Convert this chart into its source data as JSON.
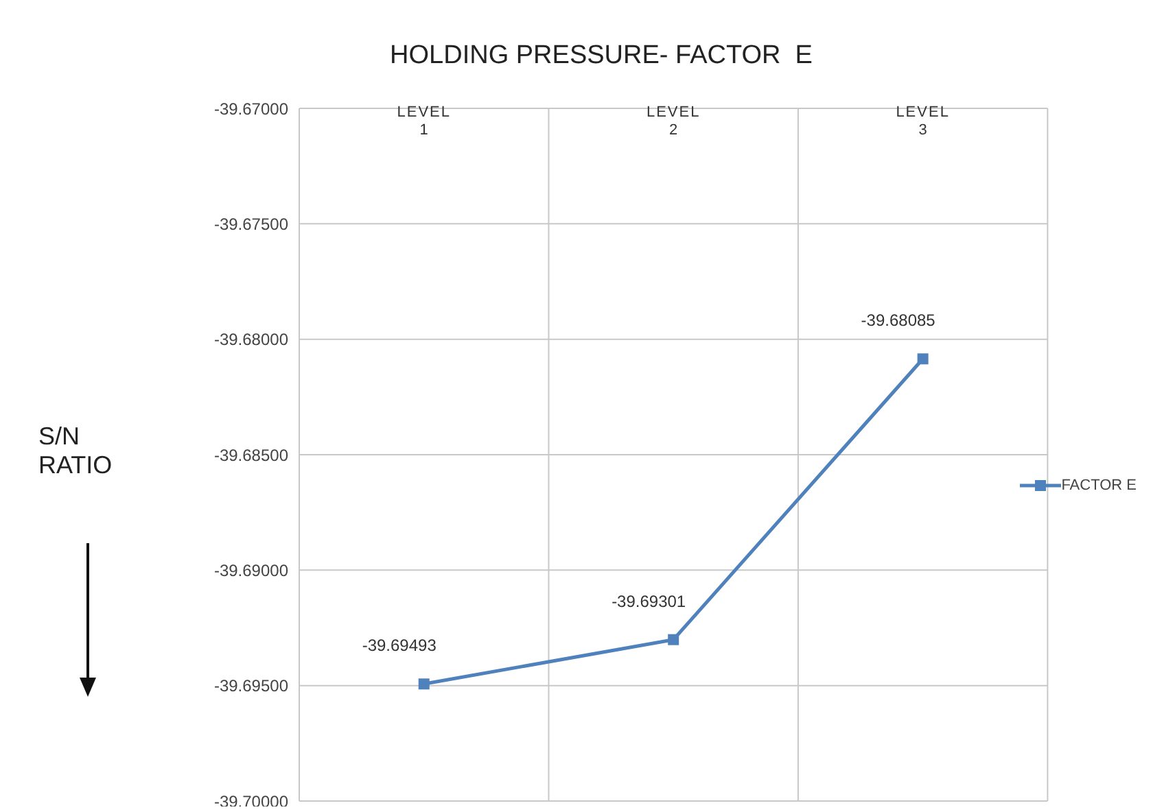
{
  "chart_data": {
    "type": "line",
    "title": "HOLDING PRESSURE- FACTOR  E",
    "ylabel": "S/N RATIO",
    "categories": [
      "LEVEL 1",
      "LEVEL 2",
      "LEVEL 3"
    ],
    "series": [
      {
        "name": "FACTOR E",
        "color": "#4f81bd",
        "values": [
          -39.69493,
          -39.69301,
          -39.68085
        ]
      }
    ],
    "ylim": [
      -39.7,
      -39.67
    ],
    "yticks": [
      {
        "value": -39.67,
        "label": "-39.67000"
      },
      {
        "value": -39.675,
        "label": "-39.67500"
      },
      {
        "value": -39.68,
        "label": "-39.68000"
      },
      {
        "value": -39.685,
        "label": "-39.68500"
      },
      {
        "value": -39.69,
        "label": "-39.69000"
      },
      {
        "value": -39.695,
        "label": "-39.69500"
      },
      {
        "value": -39.7,
        "label": "-39.70000"
      }
    ],
    "grid": true,
    "legend": "right",
    "marker": "square",
    "line_style": "solid",
    "data_labels": true
  }
}
